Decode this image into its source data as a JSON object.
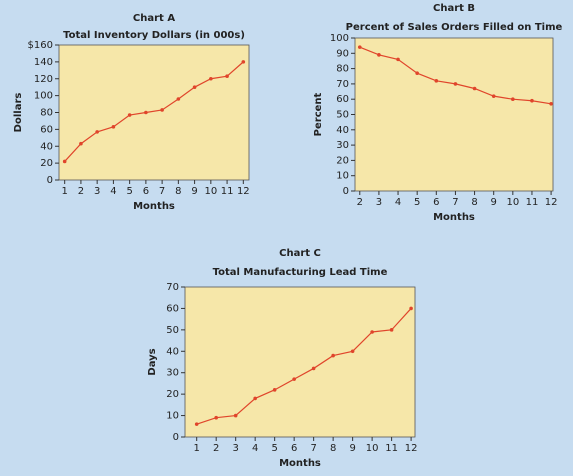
{
  "chart_data": [
    {
      "type": "line",
      "title": "Chart A",
      "subtitle": "Total Inventory Dollars (in 000s)",
      "xlabel": "Months",
      "ylabel": "Dollars",
      "x": [
        1,
        2,
        3,
        4,
        5,
        6,
        7,
        8,
        9,
        10,
        11,
        12
      ],
      "values": [
        22,
        43,
        57,
        63,
        77,
        80,
        83,
        96,
        110,
        120,
        123,
        140
      ],
      "color": "#e0452b",
      "xlim": [
        0.65,
        12.35
      ],
      "xticks": [
        1,
        2,
        3,
        4,
        5,
        6,
        7,
        8,
        9,
        10,
        11,
        12
      ],
      "ylim": [
        0,
        160
      ],
      "yticks": [
        0,
        20,
        40,
        60,
        80,
        100,
        120,
        140,
        {
          "value": 160,
          "label": "$160"
        }
      ]
    },
    {
      "type": "line",
      "title": "Chart B",
      "subtitle": "Percent of Sales Orders Filled on Time",
      "xlabel": "Months",
      "ylabel": "Percent",
      "x": [
        2,
        3,
        4,
        5,
        6,
        7,
        8,
        9,
        10,
        11,
        12
      ],
      "values": [
        94,
        89,
        86,
        77,
        72,
        70,
        67,
        62,
        60,
        59,
        57
      ],
      "color": "#e0452b",
      "xlim": [
        1.75,
        12.1
      ],
      "xticks": [
        2,
        3,
        4,
        5,
        6,
        7,
        8,
        9,
        10,
        11,
        12
      ],
      "ylim": [
        0,
        100
      ],
      "yticks": [
        0,
        10,
        20,
        30,
        40,
        50,
        60,
        70,
        80,
        90,
        100
      ]
    },
    {
      "type": "line",
      "title": "Chart C",
      "subtitle": "Total Manufacturing Lead Time",
      "xlabel": "Months",
      "ylabel": "Days",
      "x": [
        1,
        2,
        3,
        4,
        5,
        6,
        7,
        8,
        9,
        10,
        11,
        12
      ],
      "values": [
        6,
        9,
        10,
        18,
        22,
        27,
        32,
        38,
        40,
        49,
        50,
        60
      ],
      "color": "#e0452b",
      "xlim": [
        0.4,
        12.2
      ],
      "xticks": [
        1,
        2,
        3,
        4,
        5,
        6,
        7,
        8,
        9,
        10,
        11,
        12
      ],
      "ylim": [
        0,
        70
      ],
      "yticks": [
        0,
        10,
        20,
        30,
        40,
        50,
        60,
        70
      ]
    }
  ]
}
